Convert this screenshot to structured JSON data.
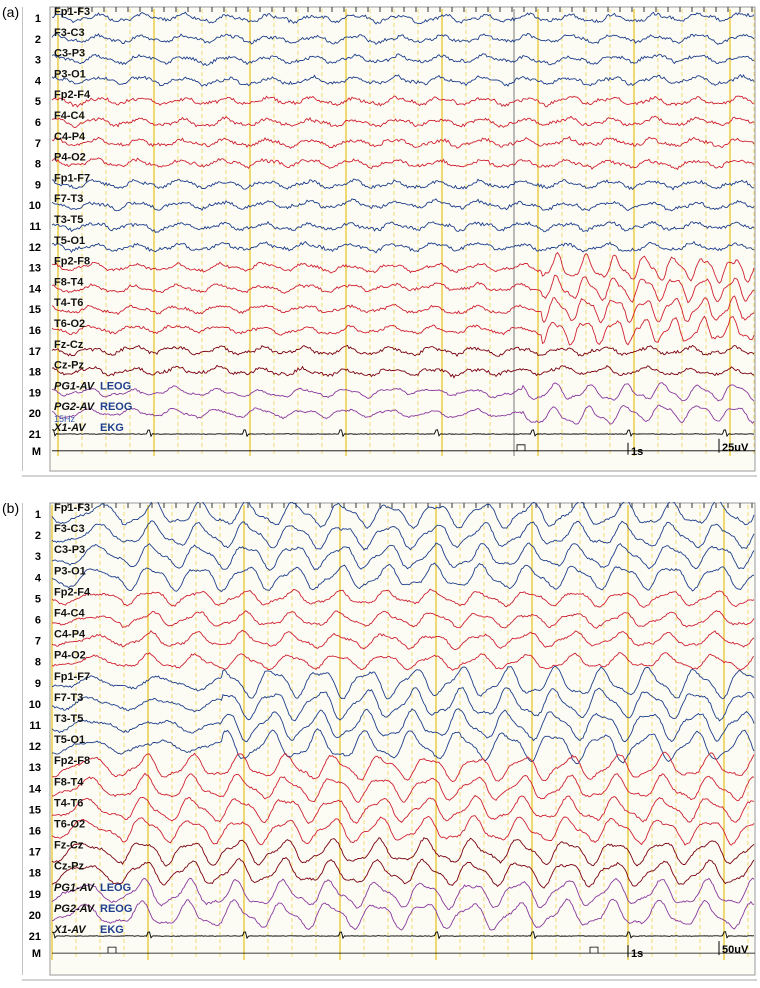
{
  "figure": {
    "colors": {
      "blue": "#1e3f8c",
      "red": "#cf2233",
      "darkred": "#7a0010",
      "purple": "#8a3a9e",
      "ekg": "#000000",
      "grid_major": "#e6c21a",
      "grid_minor": "#f0d66a",
      "background": "#fdfcf4"
    },
    "channel_colors": [
      "blue",
      "blue",
      "blue",
      "blue",
      "red",
      "red",
      "red",
      "red",
      "blue",
      "blue",
      "blue",
      "blue",
      "red",
      "red",
      "red",
      "red",
      "darkred",
      "darkred",
      "purple",
      "purple",
      "ekg"
    ],
    "panels": [
      {
        "letter": "(a)",
        "scale_time": "1s",
        "scale_amp": "25uV",
        "channels": [
          {
            "num": "1",
            "label": "Fp1-F3"
          },
          {
            "num": "2",
            "label": "F3-C3"
          },
          {
            "num": "3",
            "label": "C3-P3"
          },
          {
            "num": "4",
            "label": "P3-O1"
          },
          {
            "num": "5",
            "label": "Fp2-F4"
          },
          {
            "num": "6",
            "label": "F4-C4"
          },
          {
            "num": "7",
            "label": "C4-P4"
          },
          {
            "num": "8",
            "label": "P4-O2"
          },
          {
            "num": "9",
            "label": "Fp1-F7"
          },
          {
            "num": "10",
            "label": "F7-T3"
          },
          {
            "num": "11",
            "label": "T3-T5"
          },
          {
            "num": "12",
            "label": "T5-O1"
          },
          {
            "num": "13",
            "label": "Fp2-F8"
          },
          {
            "num": "14",
            "label": "F8-T4"
          },
          {
            "num": "15",
            "label": "T4-T6"
          },
          {
            "num": "16",
            "label": "T6-O2"
          },
          {
            "num": "17",
            "label": "Fz-Cz"
          },
          {
            "num": "18",
            "label": "Cz-Pz"
          },
          {
            "num": "19",
            "label": "PG1-AV",
            "extra": "LEOG"
          },
          {
            "num": "20",
            "label": "PG2-AV",
            "extra": "REOG"
          },
          {
            "num": "21",
            "label": "X1-AV",
            "extra": "EKG",
            "note": "15Hz"
          }
        ],
        "marker_label": "M"
      },
      {
        "letter": "(b)",
        "scale_time": "1s",
        "scale_amp": "50uV",
        "channels": [
          {
            "num": "1",
            "label": "Fp1-F3"
          },
          {
            "num": "2",
            "label": "F3-C3"
          },
          {
            "num": "3",
            "label": "C3-P3"
          },
          {
            "num": "4",
            "label": "P3-O1"
          },
          {
            "num": "5",
            "label": "Fp2-F4"
          },
          {
            "num": "6",
            "label": "F4-C4"
          },
          {
            "num": "7",
            "label": "C4-P4"
          },
          {
            "num": "8",
            "label": "P4-O2"
          },
          {
            "num": "9",
            "label": "Fp1-F7"
          },
          {
            "num": "10",
            "label": "F7-T3"
          },
          {
            "num": "11",
            "label": "T3-T5"
          },
          {
            "num": "12",
            "label": "T5-O1"
          },
          {
            "num": "13",
            "label": "Fp2-F8"
          },
          {
            "num": "14",
            "label": "F8-T4"
          },
          {
            "num": "15",
            "label": "T4-T6"
          },
          {
            "num": "16",
            "label": "T6-O2"
          },
          {
            "num": "17",
            "label": "Fz-Cz"
          },
          {
            "num": "18",
            "label": "Cz-Pz"
          },
          {
            "num": "19",
            "label": "PG1-AV",
            "extra": "LEOG"
          },
          {
            "num": "20",
            "label": "PG2-AV",
            "extra": "REOG"
          },
          {
            "num": "21",
            "label": "X1-AV",
            "extra": "EKG"
          }
        ],
        "marker_label": "M"
      }
    ]
  }
}
